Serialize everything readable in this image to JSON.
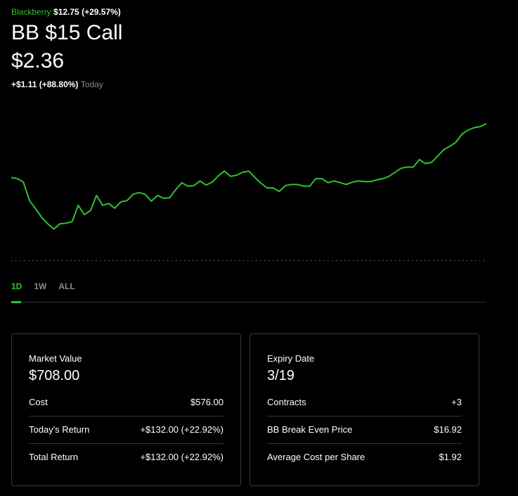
{
  "header": {
    "stock_name": "Blackberry",
    "stock_price": "$12.75",
    "stock_change": "(+29.57%)",
    "title": "BB $15 Call",
    "price": "$2.36",
    "change": "+$1.11 (+88.80%)",
    "change_period": "Today"
  },
  "chart_data": {
    "type": "line",
    "color": "#2fc22f",
    "ylim": [
      0,
      2.6
    ],
    "values": [
      1.43,
      1.41,
      1.35,
      1.03,
      0.89,
      0.74,
      0.63,
      0.54,
      0.63,
      0.64,
      0.67,
      0.95,
      0.79,
      0.86,
      1.12,
      0.95,
      0.98,
      0.9,
      1.01,
      1.03,
      1.14,
      1.17,
      1.14,
      1.02,
      1.12,
      1.07,
      1.08,
      1.22,
      1.34,
      1.28,
      1.29,
      1.37,
      1.3,
      1.35,
      1.46,
      1.54,
      1.45,
      1.47,
      1.52,
      1.54,
      1.43,
      1.33,
      1.25,
      1.25,
      1.19,
      1.29,
      1.31,
      1.31,
      1.28,
      1.28,
      1.41,
      1.41,
      1.34,
      1.37,
      1.34,
      1.31,
      1.35,
      1.37,
      1.36,
      1.36,
      1.39,
      1.41,
      1.45,
      1.52,
      1.59,
      1.61,
      1.61,
      1.74,
      1.67,
      1.69,
      1.8,
      1.91,
      1.97,
      2.04,
      2.18,
      2.25,
      2.29,
      2.31,
      2.36
    ]
  },
  "tabs": [
    "1D",
    "1W",
    "ALL"
  ],
  "cards": [
    {
      "title": "Market Value",
      "value": "$708.00",
      "rows": [
        {
          "label": "Cost",
          "value": "$576.00"
        },
        {
          "label": "Today's Return",
          "value": "+$132.00 (+22.92%)"
        },
        {
          "label": "Total Return",
          "value": "+$132.00 (+22.92%)"
        }
      ]
    },
    {
      "title": "Expiry Date",
      "value": "3/19",
      "rows": [
        {
          "label": "Contracts",
          "value": "+3"
        },
        {
          "label": "BB Break Even Price",
          "value": "$16.92"
        },
        {
          "label": "Average Cost per Share",
          "value": "$1.92"
        }
      ]
    }
  ]
}
